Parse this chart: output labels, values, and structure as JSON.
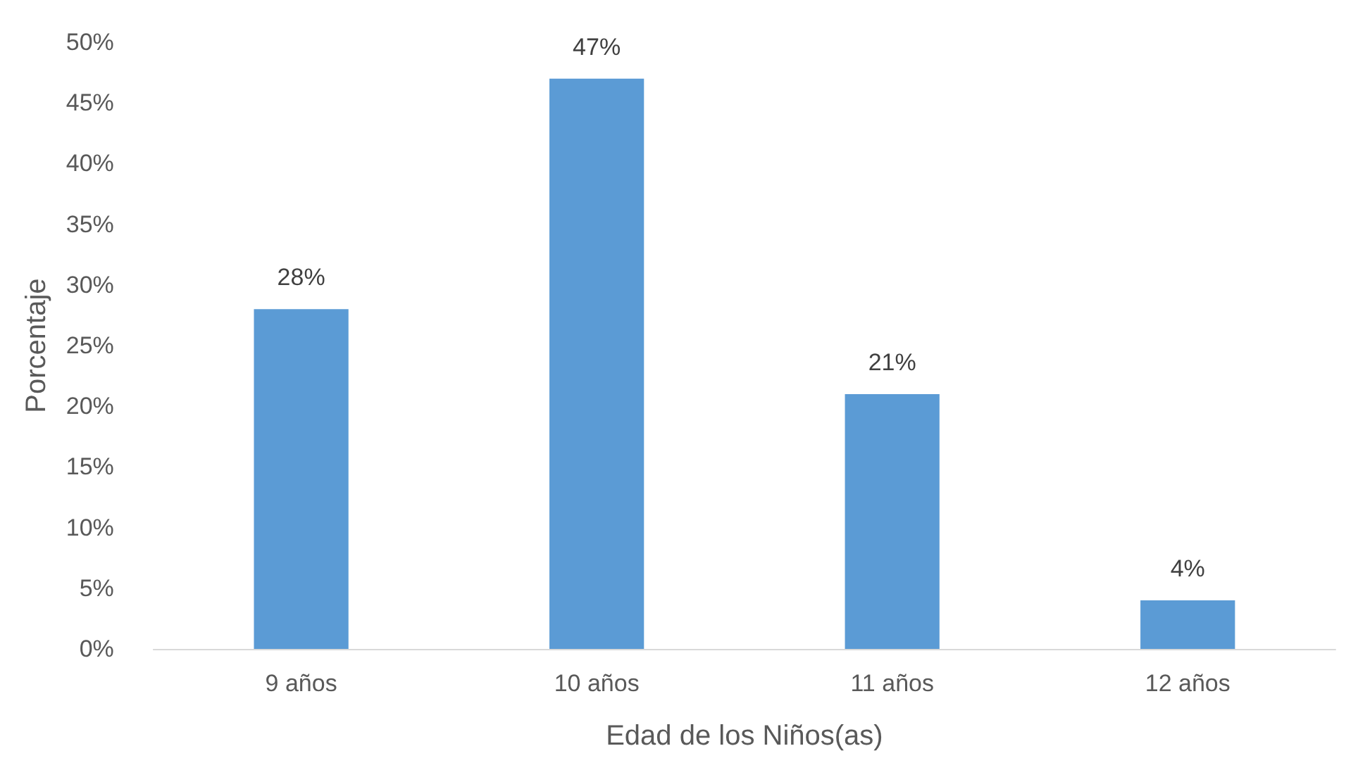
{
  "chart_data": {
    "type": "bar",
    "xlabel": "Edad de los Niños(as)",
    "ylabel": "Porcentaje",
    "categories": [
      "9 años",
      "10 años",
      "11 años",
      "12 años"
    ],
    "values": [
      28,
      47,
      21,
      4
    ],
    "value_labels": [
      "28%",
      "47%",
      "21%",
      "4%"
    ],
    "color": "#5b9bd5",
    "ylim": [
      0,
      50
    ],
    "yticks": [
      {
        "value": 0,
        "label": "0%"
      },
      {
        "value": 5,
        "label": "5%"
      },
      {
        "value": 10,
        "label": "10%"
      },
      {
        "value": 15,
        "label": "15%"
      },
      {
        "value": 20,
        "label": "20%"
      },
      {
        "value": 25,
        "label": "25%"
      },
      {
        "value": 30,
        "label": "30%"
      },
      {
        "value": 35,
        "label": "35%"
      },
      {
        "value": 40,
        "label": "40%"
      },
      {
        "value": 45,
        "label": "45%"
      },
      {
        "value": 50,
        "label": "50%"
      }
    ],
    "grid": false
  }
}
